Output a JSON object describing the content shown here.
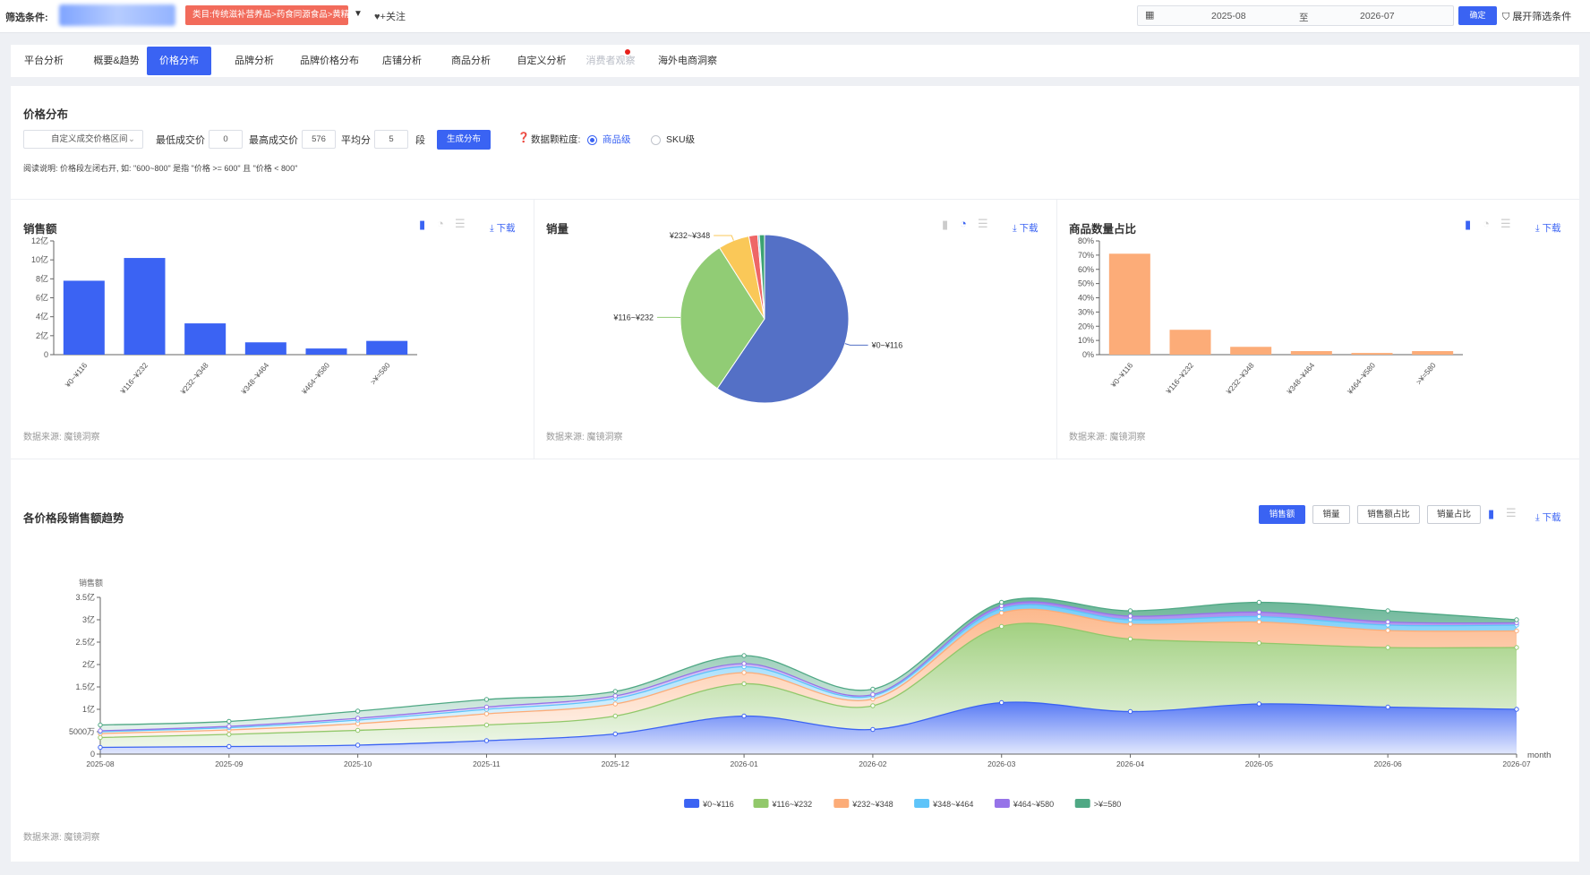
{
  "filter": {
    "label": "筛选条件:",
    "category_tag": "类目:传统滋补营养品>药食同源食品>黄精",
    "follow_label": "+关注",
    "date_start": "2025-08",
    "date_sep": "至",
    "date_end": "2026-07",
    "confirm_label": "确定",
    "expand_label": "展开筛选条件"
  },
  "tabs": [
    {
      "label": "平台分析"
    },
    {
      "label": "概要&趋势"
    },
    {
      "label": "价格分布"
    },
    {
      "label": "品牌分析"
    },
    {
      "label": "品牌价格分布"
    },
    {
      "label": "店铺分析"
    },
    {
      "label": "商品分析"
    },
    {
      "label": "自定义分析"
    },
    {
      "label": "消费者观察"
    },
    {
      "label": "海外电商洞察"
    }
  ],
  "price_dist": {
    "title": "价格分布",
    "range_select": "自定义成交价格区间",
    "min_label": "最低成交价",
    "min_value": "0",
    "max_label": "最高成交价",
    "max_value": "576",
    "avg_label": "平均分",
    "avg_value": "5",
    "seg_label": "段",
    "gen_button": "生成分布",
    "granularity_label": "数据颗粒度:",
    "option_product": "商品级",
    "option_sku": "SKU级",
    "note": "阅读说明: 价格段左闭右开, 如: \"600~800\" 是指 \"价格 >= 600\" 且 \"价格 < 800\""
  },
  "common": {
    "download": "下载",
    "source": "数据来源: 魔镜洞察"
  },
  "cards": {
    "sales_title": "销售额",
    "volume_title": "销量",
    "count_title": "商品数量占比",
    "trend_title": "各价格段销售额趋势"
  },
  "trend_buttons": [
    "销售额",
    "销量",
    "销售额占比",
    "销量占比"
  ],
  "colors": {
    "accent": "#3a63f3",
    "series": [
      "#3b63f3",
      "#91c86a",
      "#fcac78",
      "#5ec4f9",
      "#9673e8",
      "#4fa884"
    ],
    "pie": [
      "#5470c6",
      "#91cc75",
      "#fac858",
      "#ee6666",
      "#73c0de",
      "#3ba272"
    ]
  },
  "chart_data": [
    {
      "type": "bar",
      "title": "销售额",
      "categories": [
        "¥0~¥116",
        "¥116~¥232",
        "¥232~¥348",
        "¥348~¥464",
        "¥464~¥580",
        ">¥=580"
      ],
      "values": [
        7.8,
        10.2,
        3.3,
        1.3,
        0.65,
        1.45
      ],
      "ylim": [
        0,
        12
      ],
      "yticks": [
        "0",
        "2亿",
        "4亿",
        "6亿",
        "8亿",
        "10亿",
        "12亿"
      ],
      "grid": false
    },
    {
      "type": "pie",
      "title": "销量",
      "labels": [
        "¥0~¥116",
        "¥116~¥232",
        "¥232~¥348",
        "¥348~¥464",
        "¥464~¥580",
        ">¥=580"
      ],
      "values": [
        59.5,
        31.5,
        6.0,
        1.7,
        0.3,
        1.0
      ],
      "shown_labels": [
        "¥0~¥116",
        "¥116~¥232",
        "¥232~¥348"
      ]
    },
    {
      "type": "bar",
      "title": "商品数量占比",
      "categories": [
        "¥0~¥116",
        "¥116~¥232",
        "¥232~¥348",
        "¥348~¥464",
        "¥464~¥580",
        ">¥=580"
      ],
      "values": [
        71,
        17.5,
        5.5,
        2.5,
        1.2,
        2.5
      ],
      "ylim": [
        0,
        80
      ],
      "yticks": [
        "0%",
        "10%",
        "20%",
        "30%",
        "40%",
        "50%",
        "60%",
        "70%",
        "80%"
      ],
      "grid": false
    },
    {
      "type": "area",
      "title": "各价格段销售额趋势",
      "ylabel": "销售额",
      "xlabel": "month",
      "x": [
        "2025-08",
        "2025-09",
        "2025-10",
        "2025-11",
        "2025-12",
        "2026-01",
        "2026-02",
        "2026-03",
        "2026-04",
        "2026-05",
        "2026-06",
        "2026-07"
      ],
      "yticks": [
        "0",
        "5000万",
        "1亿",
        "1.5亿",
        "2亿",
        "2.5亿",
        "3亿",
        "3.5亿"
      ],
      "ylim": [
        0,
        3.5
      ],
      "stacked": true,
      "series": [
        {
          "name": "¥0~¥116",
          "values": [
            0.15,
            0.17,
            0.2,
            0.3,
            0.45,
            0.85,
            0.55,
            1.15,
            0.95,
            1.12,
            1.05,
            1.0
          ]
        },
        {
          "name": "¥116~¥232",
          "values": [
            0.22,
            0.27,
            0.33,
            0.35,
            0.4,
            0.72,
            0.53,
            1.7,
            1.62,
            1.36,
            1.33,
            1.38
          ]
        },
        {
          "name": "¥232~¥348",
          "values": [
            0.09,
            0.1,
            0.15,
            0.25,
            0.27,
            0.25,
            0.15,
            0.3,
            0.33,
            0.47,
            0.38,
            0.37
          ]
        },
        {
          "name": "¥348~¥464",
          "values": [
            0.04,
            0.05,
            0.08,
            0.1,
            0.12,
            0.13,
            0.07,
            0.1,
            0.1,
            0.12,
            0.12,
            0.13
          ]
        },
        {
          "name": "¥464~¥580",
          "values": [
            0.02,
            0.03,
            0.04,
            0.05,
            0.06,
            0.07,
            0.03,
            0.06,
            0.08,
            0.1,
            0.07,
            0.05
          ]
        },
        {
          "name": ">¥=580",
          "values": [
            0.13,
            0.11,
            0.16,
            0.17,
            0.1,
            0.18,
            0.12,
            0.08,
            0.12,
            0.22,
            0.25,
            0.07
          ]
        }
      ],
      "legend": "bottom"
    }
  ]
}
